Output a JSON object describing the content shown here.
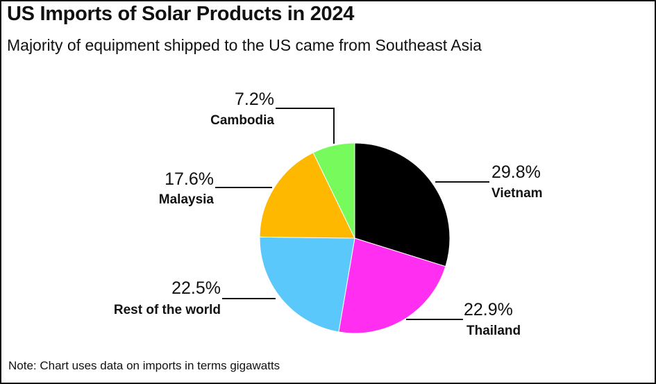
{
  "chart_data": {
    "type": "pie",
    "title": "US Imports of Solar Products in 2024",
    "subtitle": "Majority of equipment shipped to the US came from Southeast Asia",
    "note": "Note: Chart uses data on imports in terms gigawatts",
    "slices": [
      {
        "label": "Vietnam",
        "value": 29.8,
        "value_label": "29.8%",
        "color": "#000000"
      },
      {
        "label": "Thailand",
        "value": 22.9,
        "value_label": "22.9%",
        "color": "#ff2ef0"
      },
      {
        "label": "Rest of the world",
        "value": 22.5,
        "value_label": "22.5%",
        "color": "#5bc8fb"
      },
      {
        "label": "Malaysia",
        "value": 17.6,
        "value_label": "17.6%",
        "color": "#ffb800"
      },
      {
        "label": "Cambodia",
        "value": 7.2,
        "value_label": "7.2%",
        "color": "#76fa5c"
      }
    ]
  }
}
